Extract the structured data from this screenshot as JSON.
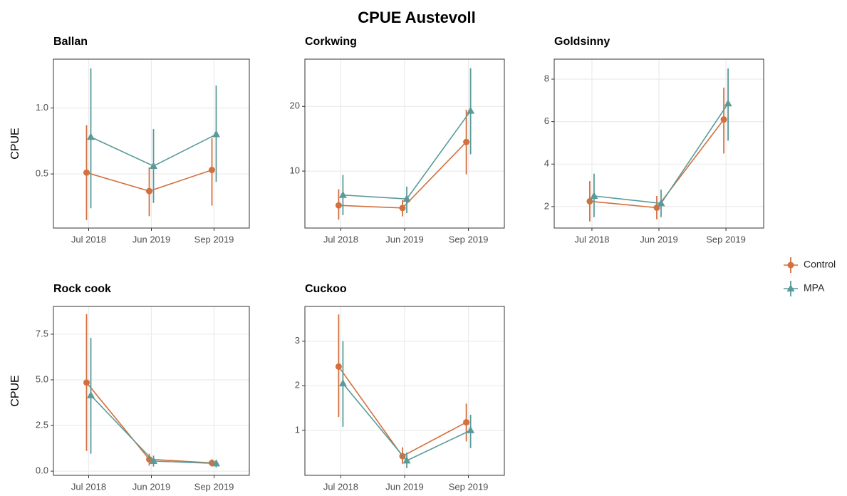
{
  "title": "CPUE Austevoll",
  "chart_data": [
    {
      "type": "line",
      "title": "Ballan",
      "ylabel": "CPUE",
      "categories": [
        "Jul 2018",
        "Jun 2019",
        "Sep 2019"
      ],
      "series": [
        {
          "name": "Control",
          "color": "#d2703e",
          "marker": "circle",
          "values": [
            0.51,
            0.37,
            0.53
          ],
          "lower": [
            0.15,
            0.18,
            0.26
          ],
          "upper": [
            0.87,
            0.55,
            0.77
          ]
        },
        {
          "name": "MPA",
          "color": "#5a9a9a",
          "marker": "triangle",
          "values": [
            0.78,
            0.56,
            0.8
          ],
          "lower": [
            0.24,
            0.28,
            0.44
          ],
          "upper": [
            1.3,
            0.84,
            1.17
          ]
        }
      ],
      "ylim": [
        0.09,
        1.37
      ],
      "yticks": [
        0.5,
        {
          "value": 1,
          "label": "1.0"
        }
      ],
      "grid": true
    },
    {
      "type": "line",
      "title": "Corkwing",
      "categories": [
        "Jul 2018",
        "Jun 2019",
        "Sep 2019"
      ],
      "series": [
        {
          "name": "Control",
          "color": "#d2703e",
          "marker": "circle",
          "values": [
            4.7,
            4.3,
            14.5
          ],
          "lower": [
            2.5,
            3,
            9.5
          ],
          "upper": [
            7.2,
            5.5,
            19.5
          ]
        },
        {
          "name": "MPA",
          "color": "#5a9a9a",
          "marker": "triangle",
          "values": [
            6.3,
            5.7,
            19.3
          ],
          "lower": [
            3.2,
            3.5,
            12.6
          ],
          "upper": [
            9.4,
            7.6,
            25.9
          ]
        }
      ],
      "ylim": [
        1.2,
        27.3
      ],
      "yticks": [
        10,
        20
      ],
      "grid": true
    },
    {
      "type": "line",
      "title": "Goldsinny",
      "categories": [
        "Jul 2018",
        "Jun 2019",
        "Sep 2019"
      ],
      "series": [
        {
          "name": "Control",
          "color": "#d2703e",
          "marker": "circle",
          "values": [
            2.25,
            1.95,
            6.1
          ],
          "lower": [
            1.3,
            1.4,
            4.5
          ],
          "upper": [
            3.2,
            2.5,
            7.6
          ]
        },
        {
          "name": "MPA",
          "color": "#5a9a9a",
          "marker": "triangle",
          "values": [
            2.5,
            2.15,
            6.85
          ],
          "lower": [
            1.5,
            1.5,
            5.1
          ],
          "upper": [
            3.55,
            2.8,
            8.5
          ]
        }
      ],
      "ylim": [
        0.99,
        8.94
      ],
      "yticks": [
        2,
        4,
        6,
        8
      ],
      "grid": true
    },
    {
      "type": "line",
      "title": "Rock cook",
      "ylabel": "CPUE",
      "categories": [
        "Jul 2018",
        "Jun 2019",
        "Sep 2019"
      ],
      "series": [
        {
          "name": "Control",
          "color": "#d2703e",
          "marker": "circle",
          "values": [
            4.85,
            0.65,
            0.45
          ],
          "lower": [
            1.1,
            0.3,
            0.25
          ],
          "upper": [
            8.6,
            0.95,
            0.65
          ]
        },
        {
          "name": "MPA",
          "color": "#5a9a9a",
          "marker": "triangle",
          "values": [
            4.15,
            0.55,
            0.42
          ],
          "lower": [
            0.95,
            0.25,
            0.2
          ],
          "upper": [
            7.3,
            0.85,
            0.6
          ]
        }
      ],
      "ylim": [
        -0.23,
        9.02
      ],
      "yticks": [
        {
          "value": 0,
          "label": "0.0"
        },
        2.5,
        {
          "value": 5,
          "label": "5.0"
        },
        7.5
      ],
      "grid": true
    },
    {
      "type": "line",
      "title": "Cuckoo",
      "categories": [
        "Jul 2018",
        "Jun 2019",
        "Sep 2019"
      ],
      "series": [
        {
          "name": "Control",
          "color": "#d2703e",
          "marker": "circle",
          "values": [
            2.43,
            0.42,
            1.18
          ],
          "lower": [
            1.3,
            0.25,
            0.75
          ],
          "upper": [
            3.6,
            0.62,
            1.6
          ]
        },
        {
          "name": "MPA",
          "color": "#5a9a9a",
          "marker": "triangle",
          "values": [
            2.05,
            0.32,
            1.0
          ],
          "lower": [
            1.08,
            0.15,
            0.6
          ],
          "upper": [
            3.0,
            0.5,
            1.35
          ]
        }
      ],
      "ylim": [
        -0.01,
        3.78
      ],
      "yticks": [
        1,
        2,
        3
      ],
      "grid": true
    }
  ]
}
